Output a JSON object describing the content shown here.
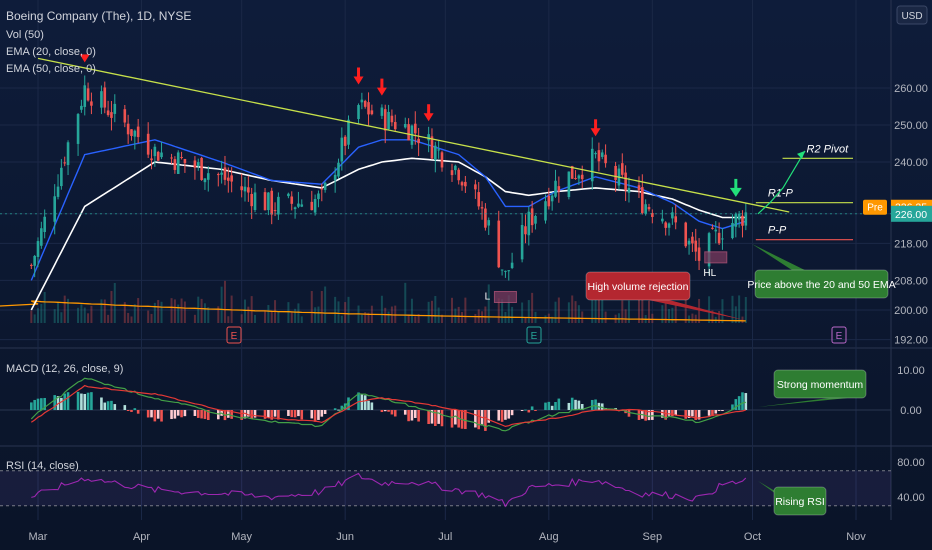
{
  "header": {
    "symbol": "Boeing Company (The), 1D, NYSE",
    "indicators": [
      "Vol (50)",
      "EMA (20, close, 0)",
      "EMA (50, close, 0)"
    ],
    "currency": "USD"
  },
  "colors": {
    "bull": "#26a69a",
    "bear": "#ef5350",
    "ema20": "#2962ff",
    "ema50": "#ffffff",
    "trendline": "#c6e04a",
    "volume_ma": "#ff9800",
    "macd_line": "#43a047",
    "signal_line": "#e53935",
    "rsi": "#9c27b0",
    "pre_badge": "#ff9800",
    "price_badge": "#26a69a"
  },
  "chart_data": [
    {
      "type": "candlestick",
      "panel": "price",
      "y_ticks": [
        260,
        250,
        240,
        226,
        218,
        208,
        200,
        192
      ],
      "y_tick_labels": [
        "260.00",
        "250.00",
        "240.00",
        "226.00",
        "218.00",
        "208.00",
        "200.00",
        "192.00"
      ],
      "x_ticks": [
        "Mar",
        "Apr",
        "May",
        "Jun",
        "Jul",
        "Aug",
        "Sep",
        "Oct",
        "Nov"
      ],
      "ylim": [
        190,
        271
      ],
      "dates": [
        "2023-02-27",
        "2023-03-15",
        "2023-04-05",
        "2023-04-25",
        "2023-05-10",
        "2023-05-25",
        "2023-06-05",
        "2023-06-12",
        "2023-06-21",
        "2023-07-05",
        "2023-07-13",
        "2023-07-19",
        "2023-07-26",
        "2023-08-03",
        "2023-08-15",
        "2023-08-28",
        "2023-09-07",
        "2023-09-15",
        "2023-09-22",
        "2023-09-29"
      ],
      "close": [
        212,
        260,
        243,
        236,
        228,
        230,
        255,
        252,
        249,
        238,
        225,
        209,
        224,
        234,
        241,
        230,
        224,
        214,
        222,
        226
      ],
      "ema20": [
        208,
        242,
        246,
        240,
        235,
        234,
        244,
        246,
        246,
        242,
        236,
        228,
        228,
        232,
        236,
        233,
        229,
        224,
        222,
        224
      ],
      "ema50": [
        200,
        228,
        240,
        238,
        235,
        233,
        238,
        240,
        241,
        240,
        236,
        232,
        231,
        232,
        233,
        232,
        230,
        227,
        225,
        225
      ],
      "levels": [
        {
          "name": "R2 Pivot",
          "value": 241
        },
        {
          "name": "R1-P",
          "value": 229
        },
        {
          "name": "P-P",
          "value": 219
        }
      ],
      "pre_market": {
        "label": "Pre",
        "value": "226.25"
      },
      "last_price": "226.00",
      "annotations": [
        {
          "text": "High volume rejection"
        },
        {
          "text": "Price above the 20 and 50 EMA"
        },
        {
          "text": "L"
        },
        {
          "text": "HL"
        }
      ],
      "earnings_markers": [
        "E",
        "E",
        "E"
      ]
    },
    {
      "type": "line",
      "panel": "macd",
      "title": "MACD (12, 26, close, 9)",
      "y_ticks": [
        10,
        0
      ],
      "y_tick_labels": [
        "10.00",
        "0.00"
      ],
      "ylim": [
        -6,
        13
      ],
      "macd": [
        -2,
        8,
        3,
        -1,
        -3,
        -4,
        4,
        3,
        1,
        -2,
        -4,
        -5,
        -3,
        -1,
        1,
        -1,
        -2,
        -3,
        -1,
        2
      ],
      "signal": [
        -3,
        6,
        4,
        0,
        -2,
        -3,
        2,
        3,
        2,
        0,
        -2,
        -4,
        -3,
        -2,
        0,
        0,
        -1,
        -2,
        -1,
        0
      ],
      "annotations": [
        {
          "text": "Strong momentum"
        }
      ]
    },
    {
      "type": "line",
      "panel": "rsi",
      "title": "RSI (14, close)",
      "y_ticks": [
        80,
        40
      ],
      "y_tick_labels": [
        "80.00",
        "40.00"
      ],
      "ylim": [
        25,
        85
      ],
      "rsi": [
        40,
        62,
        48,
        44,
        40,
        46,
        64,
        56,
        58,
        48,
        42,
        32,
        50,
        54,
        60,
        44,
        42,
        38,
        54,
        58
      ],
      "annotations": [
        {
          "text": "Rising RSI"
        }
      ]
    }
  ]
}
